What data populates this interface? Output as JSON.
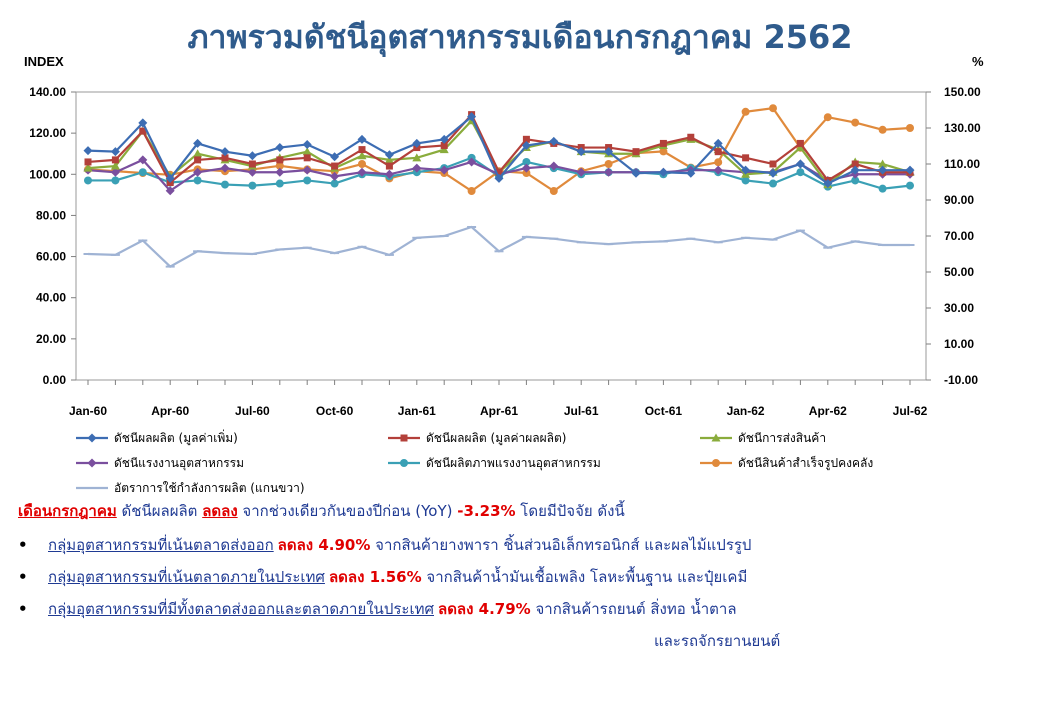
{
  "title": "ภาพรวมดัชนีอุตสาหกรรมเดือนกรกฎาคม 2562",
  "chart_data": {
    "type": "line",
    "y_left_label": "INDEX",
    "y_right_label": "%",
    "y_left_ticks": [
      "0.00",
      "20.00",
      "40.00",
      "60.00",
      "80.00",
      "100.00",
      "120.00",
      "140.00"
    ],
    "y_right_ticks": [
      "-10.00",
      "10.00",
      "30.00",
      "50.00",
      "70.00",
      "90.00",
      "110.00",
      "130.00",
      "150.00"
    ],
    "ylim_left": [
      0,
      140
    ],
    "ylim_right": [
      -10,
      150
    ],
    "x_tick_labels": [
      "Jan-60",
      "Apr-60",
      "Jul-60",
      "Oct-60",
      "Jan-61",
      "Apr-61",
      "Jul-61",
      "Oct-61",
      "Jan-62",
      "Apr-62",
      "Jul-62"
    ],
    "categories": [
      "Jan-60",
      "Feb-60",
      "Mar-60",
      "Apr-60",
      "May-60",
      "Jun-60",
      "Jul-60",
      "Aug-60",
      "Sep-60",
      "Oct-60",
      "Nov-60",
      "Dec-60",
      "Jan-61",
      "Feb-61",
      "Mar-61",
      "Apr-61",
      "May-61",
      "Jun-61",
      "Jul-61",
      "Aug-61",
      "Sep-61",
      "Oct-61",
      "Nov-61",
      "Dec-61",
      "Jan-62",
      "Feb-62",
      "Mar-62",
      "Apr-62",
      "May-62",
      "Jun-62",
      "Jul-62"
    ],
    "series": [
      {
        "name": "ดัชนีผลผลิต (มูลค่าเพิ่ม)",
        "axis": "left",
        "color": "#3d6db3",
        "marker": "diamond",
        "values": [
          111.5,
          111,
          125,
          98,
          115,
          111,
          109,
          113,
          114.5,
          108.5,
          117,
          109.5,
          115,
          117,
          128,
          98,
          114,
          116,
          111,
          111,
          100.5,
          101,
          100.5,
          115,
          102,
          100.5,
          105,
          95.5,
          102,
          102,
          102
        ]
      },
      {
        "name": "ดัชนีผลผลิต (มูลค่าผลผลิต)",
        "axis": "left",
        "color": "#b3403a",
        "marker": "square",
        "values": [
          106,
          107,
          121,
          96,
          107,
          108,
          105,
          107,
          108,
          104,
          112,
          104,
          113,
          114,
          129,
          101,
          117,
          115,
          113,
          113,
          111,
          115,
          118,
          111,
          108,
          105,
          115,
          97,
          105,
          101,
          101
        ]
      },
      {
        "name": "ดัชนีการส่งสินค้า",
        "axis": "left",
        "color": "#8aac3c",
        "marker": "triangle",
        "values": [
          103,
          104,
          121,
          99,
          110,
          107,
          104,
          108,
          111,
          103,
          109,
          107,
          108,
          112,
          126,
          101,
          113,
          116,
          111,
          110,
          110,
          114,
          117,
          112,
          100,
          101,
          113,
          95,
          106,
          105,
          101
        ]
      },
      {
        "name": "ดัชนีแรงงานอุตสาหกรรม",
        "axis": "left",
        "color": "#7a4f9e",
        "marker": "diamond",
        "values": [
          102,
          101,
          107,
          92,
          101,
          103,
          101,
          101,
          102,
          99,
          101,
          100,
          103,
          102,
          106,
          100,
          103,
          104,
          101,
          101,
          101,
          101,
          102,
          102,
          101,
          101,
          105,
          97,
          100,
          100,
          100
        ]
      },
      {
        "name": "ดัชนีผลิตภาพแรงงานอุตสาหกรรม",
        "axis": "left",
        "color": "#3aa0b5",
        "marker": "circle",
        "values": [
          97,
          97,
          101,
          96,
          97,
          95,
          94.5,
          95.5,
          97,
          95.5,
          100,
          99,
          101,
          103,
          108,
          99,
          106,
          103,
          100,
          101,
          101,
          100,
          103,
          101,
          97,
          95.5,
          101,
          94,
          97,
          93,
          94.5
        ]
      },
      {
        "name": "ดัชนีสินค้าสำเร็จรูปคงคลัง",
        "axis": "right",
        "color": "#e08a3c",
        "marker": "circle",
        "values": [
          107,
          106,
          105,
          104,
          107,
          106,
          107,
          109,
          107,
          106,
          110,
          102,
          106,
          105,
          95,
          106,
          105,
          95,
          106,
          110,
          116,
          117,
          108,
          111,
          139,
          141,
          119,
          136,
          133,
          129,
          130
        ]
      },
      {
        "name": "อัตราการใช้กำลังการผลิต (แกนขวา)",
        "axis": "right",
        "color": "#9fb3d4",
        "marker": "dash",
        "values": [
          60,
          59.5,
          67.5,
          53,
          61.5,
          60.5,
          60,
          62.5,
          63.5,
          60.5,
          64,
          59.5,
          69,
          70,
          75,
          61.5,
          69.5,
          68.5,
          66.5,
          65.5,
          66.5,
          67,
          68.5,
          66.5,
          69,
          68,
          73,
          63.5,
          67,
          65,
          65
        ]
      }
    ]
  },
  "summary": {
    "line1": {
      "month": "เดือนกรกฎาคม",
      "text_a": " ดัชนีผลผลิต ",
      "change": "ลดลง",
      "text_b": " จากช่วงเดียวกันของปีก่อน (YoY) ",
      "pct": "-3.23%",
      "text_c": " โดยมีปัจจัย ดังนี้"
    },
    "bullets": [
      {
        "group": "กลุ่มอุตสาหกรรมที่เน้นตลาดส่งออก",
        "change": "ลดลง 4.90%",
        "detail": " จากสินค้ายางพารา ชิ้นส่วนอิเล็กทรอนิกส์ และผลไม้แปรรูป"
      },
      {
        "group": "กลุ่มอุตสาหกรรมที่เน้นตลาดภายในประเทศ",
        "change": "ลดลง 1.56%",
        "detail": " จากสินค้าน้ำมันเชื้อเพลิง โลหะพื้นฐาน และปุ๋ยเคมี"
      },
      {
        "group": "กลุ่มอุตสาหกรรมที่มีทั้งตลาดส่งออกและตลาดภายในประเทศ",
        "change": "ลดลง 4.79%",
        "detail": " จากสินค้ารถยนต์ สิ่งทอ น้ำตาล"
      }
    ],
    "continuation": "และรถจักรยานยนต์"
  }
}
